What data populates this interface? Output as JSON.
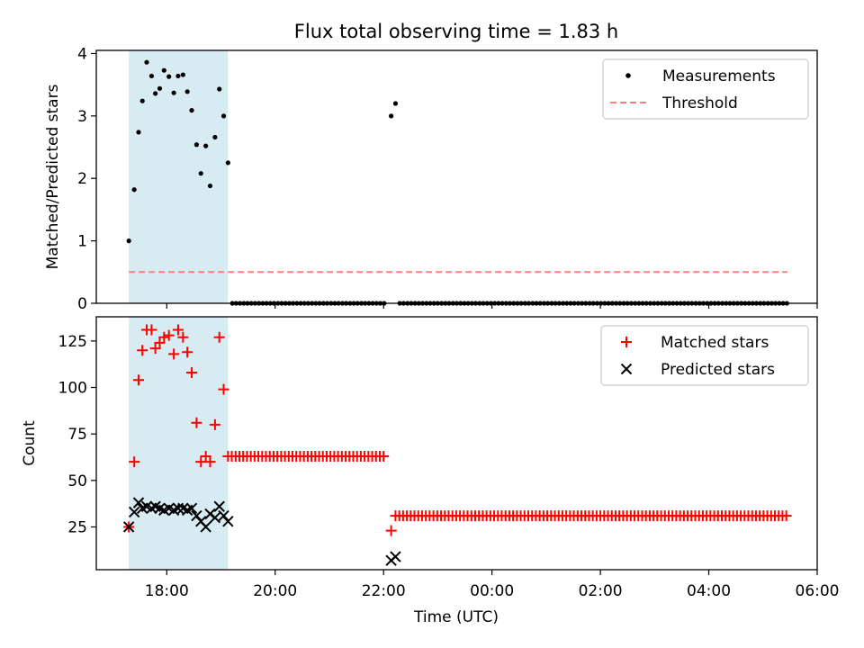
{
  "chart_data": {
    "title": "Flux total observing time = 1.83 h",
    "shared_x": {
      "label": "Time (UTC)",
      "ticks": [
        "18:00",
        "20:00",
        "22:00",
        "00:00",
        "02:00",
        "04:00",
        "06:00"
      ],
      "range_hours_from_0000_day1": [
        16.7,
        30.0
      ],
      "tick_hours": [
        18,
        20,
        22,
        24,
        26,
        28,
        30
      ]
    },
    "highlight_span": {
      "start": 17.3,
      "end": 19.13,
      "color": "#add8e6"
    },
    "panels": [
      {
        "type": "scatter",
        "ylabel": "Matched/Predicted stars",
        "ylim": [
          0,
          4.05
        ],
        "yticks": [
          "0",
          "1",
          "2",
          "3",
          "4"
        ],
        "legend": {
          "placement": "top-right",
          "entries": [
            "Measurements",
            "Threshold"
          ]
        },
        "series": [
          {
            "name": "Measurements",
            "marker": "dot",
            "color": "#000000",
            "points": [
              [
                17.3,
                1.0
              ],
              [
                17.4,
                1.82
              ],
              [
                17.48,
                2.74
              ],
              [
                17.55,
                3.24
              ],
              [
                17.63,
                3.86
              ],
              [
                17.72,
                3.64
              ],
              [
                17.79,
                3.36
              ],
              [
                17.87,
                3.44
              ],
              [
                17.95,
                3.73
              ],
              [
                18.04,
                3.63
              ],
              [
                18.13,
                3.37
              ],
              [
                18.21,
                3.64
              ],
              [
                18.3,
                3.66
              ],
              [
                18.38,
                3.39
              ],
              [
                18.46,
                3.09
              ],
              [
                18.55,
                2.54
              ],
              [
                18.63,
                2.08
              ],
              [
                18.72,
                2.52
              ],
              [
                18.8,
                1.88
              ],
              [
                18.89,
                2.66
              ],
              [
                18.97,
                3.43
              ],
              [
                19.05,
                3.0
              ],
              [
                19.13,
                2.25
              ],
              [
                22.14,
                3.0
              ],
              [
                22.22,
                3.2
              ]
            ],
            "zeros_from_to_step": [
              [
                19.21,
                22.05,
                0.07
              ],
              [
                22.3,
                29.45,
                0.07
              ]
            ]
          },
          {
            "name": "Threshold",
            "style": "dashed",
            "color": "#ff7f7f",
            "y": 0.5,
            "x_range": [
              17.3,
              29.45
            ]
          }
        ]
      },
      {
        "type": "scatter",
        "ylabel": "Count",
        "ylim": [
          2,
          138
        ],
        "yticks": [
          "25",
          "50",
          "75",
          "100",
          "125"
        ],
        "legend": {
          "placement": "top-right",
          "entries": [
            "Matched stars",
            "Predicted stars"
          ]
        },
        "series": [
          {
            "name": "Matched stars",
            "marker": "plus",
            "color": "#ff0000",
            "points": [
              [
                17.3,
                25
              ],
              [
                17.4,
                60
              ],
              [
                17.48,
                104
              ],
              [
                17.55,
                120
              ],
              [
                17.63,
                131
              ],
              [
                17.72,
                131
              ],
              [
                17.79,
                121
              ],
              [
                17.87,
                124
              ],
              [
                17.95,
                127
              ],
              [
                18.04,
                128
              ],
              [
                18.13,
                118
              ],
              [
                18.21,
                131
              ],
              [
                18.3,
                127
              ],
              [
                18.38,
                119
              ],
              [
                18.46,
                108
              ],
              [
                18.55,
                81
              ],
              [
                18.63,
                60
              ],
              [
                18.72,
                63
              ],
              [
                18.8,
                60
              ],
              [
                18.89,
                80
              ],
              [
                18.97,
                127
              ],
              [
                19.05,
                99
              ],
              [
                22.14,
                23
              ]
            ],
            "constant_runs": [
              [
                19.13,
                22.05,
                0.07,
                63
              ],
              [
                22.22,
                29.45,
                0.07,
                31
              ]
            ]
          },
          {
            "name": "Predicted stars",
            "marker": "x",
            "color": "#000000",
            "points": [
              [
                17.3,
                25
              ],
              [
                17.4,
                33
              ],
              [
                17.48,
                38
              ],
              [
                17.55,
                35
              ],
              [
                17.63,
                36
              ],
              [
                17.72,
                35
              ],
              [
                17.79,
                36
              ],
              [
                17.87,
                35
              ],
              [
                17.95,
                34
              ],
              [
                18.04,
                35
              ],
              [
                18.13,
                34
              ],
              [
                18.21,
                35
              ],
              [
                18.3,
                35
              ],
              [
                18.38,
                34
              ],
              [
                18.46,
                35
              ],
              [
                18.55,
                31
              ],
              [
                18.63,
                28
              ],
              [
                18.72,
                25
              ],
              [
                18.8,
                32
              ],
              [
                18.89,
                30
              ],
              [
                18.97,
                36
              ],
              [
                19.05,
                31
              ],
              [
                19.13,
                28
              ],
              [
                22.14,
                7
              ],
              [
                22.22,
                9
              ]
            ]
          }
        ]
      }
    ]
  }
}
